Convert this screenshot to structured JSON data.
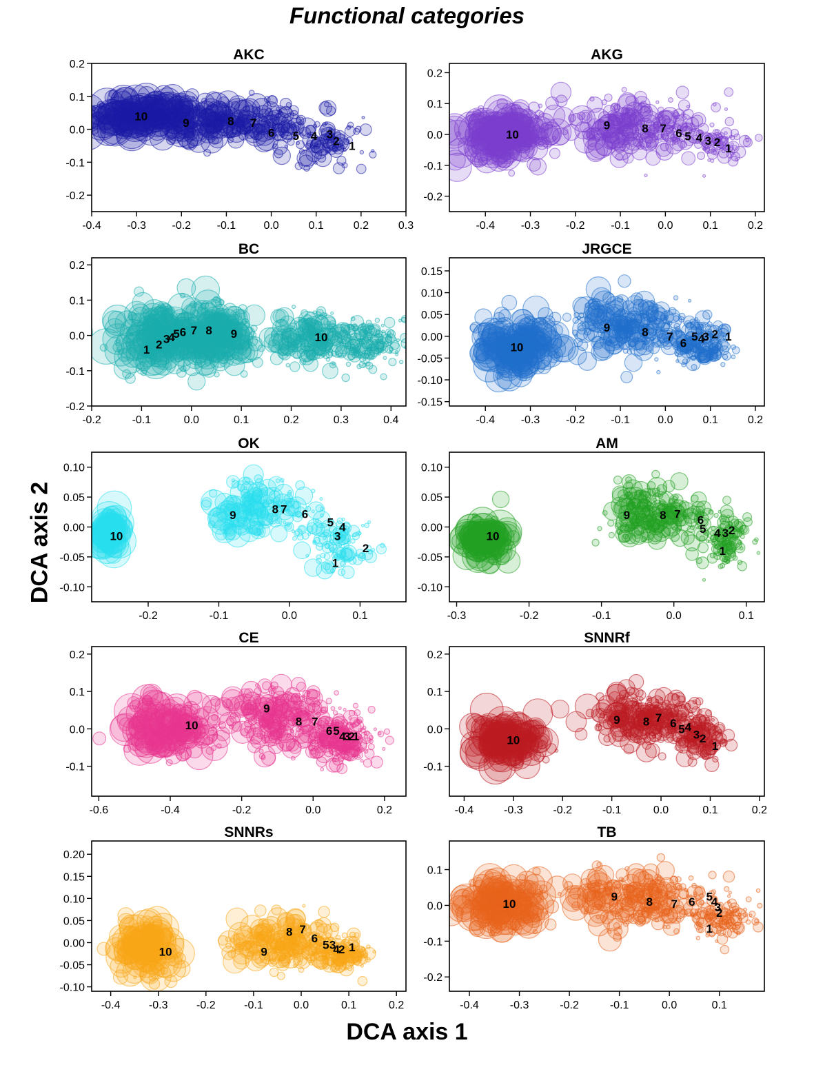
{
  "figure": {
    "title": "Functional categories",
    "xlabel": "DCA axis 1",
    "ylabel": "DCA axis 2"
  },
  "chart_data": [
    {
      "type": "scatter",
      "title": "AKC",
      "color": "#1a1aa6",
      "xlim": [
        -0.4,
        0.3
      ],
      "ylim": [
        -0.25,
        0.2
      ],
      "xticks": [
        -0.4,
        -0.3,
        -0.2,
        -0.1,
        0.0,
        0.1,
        0.2,
        0.3
      ],
      "xtick_labels": [
        "-0.4",
        "-0.3",
        "-0.2",
        "-0.1",
        "0.0",
        "0.1",
        "0.2",
        "0.3"
      ],
      "yticks": [
        -0.2,
        -0.1,
        0.0,
        0.1,
        0.2
      ],
      "ytick_labels": [
        "-0.2",
        "-0.1",
        "0.0",
        "0.1",
        "0.2"
      ],
      "clouds": [
        [
          -0.28,
          0.04,
          0.12,
          0.05,
          1.0
        ],
        [
          -0.08,
          0.02,
          0.15,
          0.06,
          0.9
        ],
        [
          0.12,
          -0.04,
          0.08,
          0.07,
          0.35
        ]
      ],
      "labels": [
        {
          "text": "10",
          "x": -0.29,
          "y": 0.04
        },
        {
          "text": "9",
          "x": -0.19,
          "y": 0.02
        },
        {
          "text": "8",
          "x": -0.09,
          "y": 0.025
        },
        {
          "text": "7",
          "x": -0.04,
          "y": 0.02
        },
        {
          "text": "6",
          "x": 0.0,
          "y": -0.01
        },
        {
          "text": "5",
          "x": 0.055,
          "y": -0.02
        },
        {
          "text": "4",
          "x": 0.095,
          "y": -0.02
        },
        {
          "text": "3",
          "x": 0.13,
          "y": -0.015
        },
        {
          "text": "2",
          "x": 0.145,
          "y": -0.035
        },
        {
          "text": "1",
          "x": 0.18,
          "y": -0.05
        }
      ]
    },
    {
      "type": "scatter",
      "title": "AKG",
      "color": "#7b3fcf",
      "xlim": [
        -0.48,
        0.22
      ],
      "ylim": [
        -0.25,
        0.23
      ],
      "xticks": [
        -0.4,
        -0.3,
        -0.2,
        -0.1,
        0.0,
        0.1,
        0.2
      ],
      "xtick_labels": [
        "-0.4",
        "-0.3",
        "-0.2",
        "-0.1",
        "0.0",
        "0.1",
        "0.2"
      ],
      "yticks": [
        -0.2,
        -0.1,
        0.0,
        0.1,
        0.2
      ],
      "ytick_labels": [
        "-0.2",
        "-0.1",
        "0.0",
        "0.1",
        "0.2"
      ],
      "clouds": [
        [
          -0.36,
          0.0,
          0.09,
          0.07,
          1.0
        ],
        [
          -0.06,
          0.02,
          0.15,
          0.08,
          0.95
        ],
        [
          0.12,
          -0.04,
          0.06,
          0.06,
          0.3
        ]
      ],
      "labels": [
        {
          "text": "10",
          "x": -0.34,
          "y": 0.0
        },
        {
          "text": "9",
          "x": -0.13,
          "y": 0.03
        },
        {
          "text": "8",
          "x": -0.045,
          "y": 0.02
        },
        {
          "text": "7",
          "x": -0.005,
          "y": 0.02
        },
        {
          "text": "6",
          "x": 0.03,
          "y": 0.005
        },
        {
          "text": "5",
          "x": 0.05,
          "y": -0.005
        },
        {
          "text": "4",
          "x": 0.075,
          "y": -0.01
        },
        {
          "text": "3",
          "x": 0.095,
          "y": -0.02
        },
        {
          "text": "2",
          "x": 0.115,
          "y": -0.025
        },
        {
          "text": "1",
          "x": 0.14,
          "y": -0.045
        }
      ]
    },
    {
      "type": "scatter",
      "title": "BC",
      "color": "#1aaeae",
      "xlim": [
        -0.2,
        0.43
      ],
      "ylim": [
        -0.2,
        0.22
      ],
      "xticks": [
        -0.2,
        -0.1,
        0.0,
        0.1,
        0.2,
        0.3,
        0.4
      ],
      "xtick_labels": [
        "-0.2",
        "-0.1",
        "0.0",
        "0.1",
        "0.2",
        "0.3",
        "0.4"
      ],
      "yticks": [
        -0.2,
        -0.1,
        0.0,
        0.1,
        0.2
      ],
      "ytick_labels": [
        "-0.2",
        "-0.1",
        "0.0",
        "0.1",
        "0.2"
      ],
      "clouds": [
        [
          -0.05,
          0.0,
          0.09,
          0.08,
          1.0
        ],
        [
          0.05,
          0.0,
          0.08,
          0.08,
          1.0
        ],
        [
          0.24,
          -0.01,
          0.07,
          0.06,
          0.8
        ],
        [
          0.35,
          -0.02,
          0.07,
          0.06,
          0.7
        ]
      ],
      "labels": [
        {
          "text": "1",
          "x": -0.09,
          "y": -0.04
        },
        {
          "text": "2",
          "x": -0.065,
          "y": -0.025
        },
        {
          "text": "3",
          "x": -0.05,
          "y": -0.01
        },
        {
          "text": "4",
          "x": -0.04,
          "y": -0.005
        },
        {
          "text": "5",
          "x": -0.03,
          "y": 0.005
        },
        {
          "text": "6",
          "x": -0.017,
          "y": 0.01
        },
        {
          "text": "7",
          "x": 0.005,
          "y": 0.015
        },
        {
          "text": "8",
          "x": 0.035,
          "y": 0.015
        },
        {
          "text": "9",
          "x": 0.085,
          "y": 0.005
        },
        {
          "text": "10",
          "x": 0.26,
          "y": -0.005
        }
      ]
    },
    {
      "type": "scatter",
      "title": "JRGCE",
      "color": "#1f6fcc",
      "xlim": [
        -0.48,
        0.22
      ],
      "ylim": [
        -0.16,
        0.18
      ],
      "xticks": [
        -0.4,
        -0.3,
        -0.2,
        -0.1,
        0.0,
        0.1,
        0.2
      ],
      "xtick_labels": [
        "-0.4",
        "-0.3",
        "-0.2",
        "-0.1",
        "0.0",
        "0.1",
        "0.2"
      ],
      "yticks": [
        -0.15,
        -0.1,
        -0.05,
        0.0,
        0.05,
        0.1,
        0.15
      ],
      "ytick_labels": [
        "-0.15",
        "-0.10",
        "-0.05",
        "0.00",
        "0.05",
        "0.10",
        "0.15"
      ],
      "clouds": [
        [
          -0.33,
          -0.02,
          0.08,
          0.06,
          0.9
        ],
        [
          -0.08,
          0.02,
          0.12,
          0.06,
          1.0
        ],
        [
          0.08,
          -0.02,
          0.06,
          0.05,
          0.6
        ]
      ],
      "labels": [
        {
          "text": "10",
          "x": -0.33,
          "y": -0.025
        },
        {
          "text": "9",
          "x": -0.13,
          "y": 0.02
        },
        {
          "text": "8",
          "x": -0.045,
          "y": 0.01
        },
        {
          "text": "7",
          "x": 0.01,
          "y": 0.0
        },
        {
          "text": "6",
          "x": 0.04,
          "y": -0.015
        },
        {
          "text": "5",
          "x": 0.065,
          "y": 0.0
        },
        {
          "text": "4",
          "x": 0.08,
          "y": -0.005
        },
        {
          "text": "3",
          "x": 0.09,
          "y": 0.0
        },
        {
          "text": "2",
          "x": 0.11,
          "y": 0.005
        },
        {
          "text": "1",
          "x": 0.14,
          "y": 0.0
        }
      ]
    },
    {
      "type": "scatter",
      "title": "OK",
      "color": "#29e0ef",
      "xlim": [
        -0.28,
        0.165
      ],
      "ylim": [
        -0.125,
        0.125
      ],
      "xticks": [
        -0.2,
        -0.1,
        0.0,
        0.1
      ],
      "xtick_labels": [
        "-0.2",
        "-0.1",
        "0.0",
        "0.1"
      ],
      "yticks": [
        -0.1,
        -0.05,
        0.0,
        0.05,
        0.1
      ],
      "ytick_labels": [
        "-0.10",
        "-0.05",
        "0.00",
        "0.05",
        "0.10"
      ],
      "clouds": [
        [
          -0.255,
          -0.01,
          0.015,
          0.03,
          0.4
        ],
        [
          -0.04,
          0.03,
          0.07,
          0.04,
          0.7
        ],
        [
          0.07,
          -0.03,
          0.04,
          0.04,
          0.4
        ]
      ],
      "labels": [
        {
          "text": "10",
          "x": -0.245,
          "y": -0.015
        },
        {
          "text": "9",
          "x": -0.08,
          "y": 0.02
        },
        {
          "text": "8",
          "x": -0.02,
          "y": 0.03
        },
        {
          "text": "7",
          "x": -0.008,
          "y": 0.03
        },
        {
          "text": "6",
          "x": 0.022,
          "y": 0.022
        },
        {
          "text": "5",
          "x": 0.058,
          "y": 0.008
        },
        {
          "text": "4",
          "x": 0.075,
          "y": 0.0
        },
        {
          "text": "3",
          "x": 0.068,
          "y": -0.015
        },
        {
          "text": "2",
          "x": 0.108,
          "y": -0.035
        },
        {
          "text": "1",
          "x": 0.065,
          "y": -0.06
        }
      ]
    },
    {
      "type": "scatter",
      "title": "AM",
      "color": "#23a023",
      "xlim": [
        -0.31,
        0.125
      ],
      "ylim": [
        -0.125,
        0.125
      ],
      "xticks": [
        -0.3,
        -0.2,
        -0.1,
        0.0,
        0.1
      ],
      "xtick_labels": [
        "-0.3",
        "-0.2",
        "-0.1",
        "0.0",
        "0.1"
      ],
      "yticks": [
        -0.1,
        -0.05,
        0.0,
        0.05,
        0.1
      ],
      "ytick_labels": [
        "-0.10",
        "-0.05",
        "0.00",
        "0.05",
        "0.10"
      ],
      "clouds": [
        [
          -0.26,
          -0.02,
          0.03,
          0.03,
          0.5
        ],
        [
          -0.03,
          0.02,
          0.06,
          0.04,
          0.9
        ],
        [
          0.07,
          -0.02,
          0.03,
          0.04,
          0.5
        ]
      ],
      "labels": [
        {
          "text": "10",
          "x": -0.25,
          "y": -0.015
        },
        {
          "text": "9",
          "x": -0.065,
          "y": 0.02
        },
        {
          "text": "8",
          "x": -0.015,
          "y": 0.02
        },
        {
          "text": "7",
          "x": 0.005,
          "y": 0.022
        },
        {
          "text": "6",
          "x": 0.037,
          "y": 0.012
        },
        {
          "text": "5",
          "x": 0.04,
          "y": -0.003
        },
        {
          "text": "4",
          "x": 0.06,
          "y": -0.01
        },
        {
          "text": "3",
          "x": 0.071,
          "y": -0.01
        },
        {
          "text": "2",
          "x": 0.08,
          "y": -0.005
        },
        {
          "text": "1",
          "x": 0.067,
          "y": -0.04
        }
      ]
    },
    {
      "type": "scatter",
      "title": "CE",
      "color": "#e8358f",
      "xlim": [
        -0.62,
        0.26
      ],
      "ylim": [
        -0.18,
        0.22
      ],
      "xticks": [
        -0.6,
        -0.4,
        -0.2,
        0.0,
        0.2
      ],
      "xtick_labels": [
        "-0.6",
        "-0.4",
        "-0.2",
        "0.0",
        "0.2"
      ],
      "yticks": [
        -0.1,
        0.0,
        0.1,
        0.2
      ],
      "ytick_labels": [
        "-0.1",
        "0.0",
        "0.1",
        "0.2"
      ],
      "clouds": [
        [
          -0.4,
          0.0,
          0.12,
          0.07,
          0.8
        ],
        [
          -0.1,
          0.03,
          0.15,
          0.07,
          1.0
        ],
        [
          0.08,
          -0.03,
          0.08,
          0.05,
          0.8
        ]
      ],
      "labels": [
        {
          "text": "10",
          "x": -0.34,
          "y": 0.01
        },
        {
          "text": "9",
          "x": -0.13,
          "y": 0.055
        },
        {
          "text": "8",
          "x": -0.04,
          "y": 0.02
        },
        {
          "text": "7",
          "x": 0.005,
          "y": 0.02
        },
        {
          "text": "6",
          "x": 0.045,
          "y": -0.005
        },
        {
          "text": "5",
          "x": 0.065,
          "y": -0.005
        },
        {
          "text": "4",
          "x": 0.082,
          "y": -0.02
        },
        {
          "text": "3",
          "x": 0.095,
          "y": -0.02
        },
        {
          "text": "2",
          "x": 0.108,
          "y": -0.02
        },
        {
          "text": "1",
          "x": 0.12,
          "y": -0.02
        }
      ]
    },
    {
      "type": "scatter",
      "title": "SNNRf",
      "color": "#bb1c24",
      "xlim": [
        -0.43,
        0.21
      ],
      "ylim": [
        -0.18,
        0.22
      ],
      "xticks": [
        -0.4,
        -0.3,
        -0.2,
        -0.1,
        0.0,
        0.1,
        0.2
      ],
      "xtick_labels": [
        "-0.4",
        "-0.3",
        "-0.2",
        "-0.1",
        "0.0",
        "0.1",
        "0.2"
      ],
      "yticks": [
        -0.1,
        0.0,
        0.1,
        0.2
      ],
      "ytick_labels": [
        "-0.1",
        "0.0",
        "0.1",
        "0.2"
      ],
      "clouds": [
        [
          -0.31,
          -0.03,
          0.06,
          0.05,
          0.8
        ],
        [
          -0.03,
          0.03,
          0.1,
          0.06,
          1.0
        ],
        [
          0.08,
          -0.02,
          0.05,
          0.05,
          0.6
        ]
      ],
      "labels": [
        {
          "text": "10",
          "x": -0.3,
          "y": -0.03
        },
        {
          "text": "9",
          "x": -0.09,
          "y": 0.025
        },
        {
          "text": "8",
          "x": -0.03,
          "y": 0.02
        },
        {
          "text": "7",
          "x": -0.005,
          "y": 0.03
        },
        {
          "text": "6",
          "x": 0.025,
          "y": 0.015
        },
        {
          "text": "5",
          "x": 0.042,
          "y": 0.0
        },
        {
          "text": "4",
          "x": 0.055,
          "y": 0.005
        },
        {
          "text": "3",
          "x": 0.072,
          "y": -0.015
        },
        {
          "text": "2",
          "x": 0.085,
          "y": -0.025
        },
        {
          "text": "1",
          "x": 0.11,
          "y": -0.045
        }
      ]
    },
    {
      "type": "scatter",
      "title": "SNNRs",
      "color": "#f7a817",
      "xlim": [
        -0.44,
        0.22
      ],
      "ylim": [
        -0.11,
        0.23
      ],
      "xticks": [
        -0.4,
        -0.3,
        -0.2,
        -0.1,
        0.0,
        0.1,
        0.2
      ],
      "xtick_labels": [
        "-0.4",
        "-0.3",
        "-0.2",
        "-0.1",
        "0.0",
        "0.1",
        "0.2"
      ],
      "yticks": [
        -0.1,
        -0.05,
        0.0,
        0.05,
        0.1,
        0.15,
        0.2
      ],
      "ytick_labels": [
        "-0.10",
        "-0.05",
        "0.00",
        "0.05",
        "0.10",
        "0.15",
        "0.20"
      ],
      "clouds": [
        [
          -0.33,
          -0.02,
          0.06,
          0.06,
          0.6
        ],
        [
          -0.03,
          0.0,
          0.1,
          0.05,
          1.0
        ],
        [
          0.09,
          -0.03,
          0.05,
          0.03,
          0.5
        ]
      ],
      "labels": [
        {
          "text": "10",
          "x": -0.285,
          "y": -0.02
        },
        {
          "text": "9",
          "x": -0.078,
          "y": -0.02
        },
        {
          "text": "8",
          "x": -0.025,
          "y": 0.025
        },
        {
          "text": "7",
          "x": 0.003,
          "y": 0.03
        },
        {
          "text": "6",
          "x": 0.028,
          "y": 0.01
        },
        {
          "text": "5",
          "x": 0.052,
          "y": -0.005
        },
        {
          "text": "3",
          "x": 0.066,
          "y": -0.005
        },
        {
          "text": "4",
          "x": 0.074,
          "y": -0.015
        },
        {
          "text": "2",
          "x": 0.085,
          "y": -0.015
        },
        {
          "text": "1",
          "x": 0.107,
          "y": -0.01
        }
      ]
    },
    {
      "type": "scatter",
      "title": "TB",
      "color": "#e8631c",
      "xlim": [
        -0.44,
        0.19
      ],
      "ylim": [
        -0.24,
        0.18
      ],
      "xticks": [
        -0.4,
        -0.3,
        -0.2,
        -0.1,
        0.0,
        0.1
      ],
      "xtick_labels": [
        "-0.4",
        "-0.3",
        "-0.2",
        "-0.1",
        "0.0",
        "0.1"
      ],
      "yticks": [
        -0.2,
        -0.1,
        0.0,
        0.1
      ],
      "ytick_labels": [
        "-0.2",
        "-0.1",
        "0.0",
        "0.1"
      ],
      "clouds": [
        [
          -0.33,
          0.0,
          0.08,
          0.06,
          0.8
        ],
        [
          -0.05,
          0.02,
          0.12,
          0.07,
          1.0
        ],
        [
          0.1,
          -0.03,
          0.06,
          0.06,
          0.5
        ]
      ],
      "labels": [
        {
          "text": "10",
          "x": -0.32,
          "y": 0.005
        },
        {
          "text": "9",
          "x": -0.11,
          "y": 0.025
        },
        {
          "text": "8",
          "x": -0.04,
          "y": 0.01
        },
        {
          "text": "7",
          "x": 0.01,
          "y": 0.005
        },
        {
          "text": "6",
          "x": 0.045,
          "y": 0.01
        },
        {
          "text": "5",
          "x": 0.08,
          "y": 0.025
        },
        {
          "text": "4",
          "x": 0.09,
          "y": 0.01
        },
        {
          "text": "3",
          "x": 0.097,
          "y": -0.005
        },
        {
          "text": "2",
          "x": 0.1,
          "y": -0.02
        },
        {
          "text": "1",
          "x": 0.08,
          "y": -0.065
        }
      ]
    }
  ]
}
